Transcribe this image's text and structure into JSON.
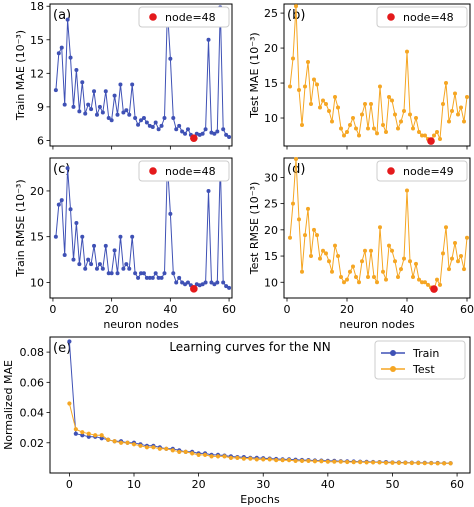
{
  "colors": {
    "train": "#3f51b5",
    "test": "#f5a623",
    "highlight": "#e41a1c"
  },
  "chart_data": [
    {
      "id": "a",
      "panel_label": "(a)",
      "type": "line",
      "ylabel": "Train MAE (10⁻³)",
      "xlabel": "",
      "xlim": [
        -1,
        61
      ],
      "ylim": [
        5.5,
        18.2
      ],
      "xticks": [
        0,
        20,
        40,
        60
      ],
      "xtick_labels": [
        "",
        "",
        "",
        ""
      ],
      "yticks": [
        6,
        9,
        12,
        15,
        18
      ],
      "ytick_labels": [
        "6",
        "9",
        "12",
        "15",
        "18"
      ],
      "legend": {
        "label": "node=48",
        "placement": "top-right"
      },
      "series_color": "train",
      "highlight": {
        "x": 48,
        "y": 6.2
      },
      "x": [
        1,
        2,
        3,
        4,
        5,
        6,
        7,
        8,
        9,
        10,
        11,
        12,
        13,
        14,
        15,
        16,
        17,
        18,
        19,
        20,
        21,
        22,
        23,
        24,
        25,
        26,
        27,
        28,
        29,
        30,
        31,
        32,
        33,
        34,
        35,
        36,
        37,
        38,
        39,
        40,
        41,
        42,
        43,
        44,
        45,
        46,
        47,
        48,
        49,
        50,
        51,
        52,
        53,
        54,
        55,
        56,
        57,
        58,
        59,
        60
      ],
      "y": [
        10.5,
        13.8,
        14.3,
        9.2,
        16.8,
        13.4,
        9.0,
        12.3,
        8.6,
        11.2,
        8.4,
        9.2,
        8.8,
        10.4,
        8.3,
        9.0,
        8.5,
        10.4,
        8.0,
        7.8,
        10.0,
        8.3,
        11.0,
        8.5,
        8.7,
        8.3,
        11.0,
        8.0,
        7.4,
        7.8,
        8.0,
        7.6,
        7.3,
        7.2,
        7.6,
        7.0,
        7.3,
        8.0,
        17.7,
        13.3,
        8.0,
        7.0,
        7.3,
        6.8,
        6.6,
        7.0,
        6.5,
        6.2,
        6.6,
        6.5,
        6.6,
        7.0,
        15.0,
        6.7,
        6.6,
        6.8,
        17.9,
        7.0,
        6.5,
        6.3
      ]
    },
    {
      "id": "b",
      "panel_label": "(b)",
      "type": "line",
      "ylabel": "Test MAE (10⁻³)",
      "xlabel": "",
      "xlim": [
        -1,
        61
      ],
      "ylim": [
        6.0,
        26.3
      ],
      "xticks": [
        0,
        20,
        40,
        60
      ],
      "xtick_labels": [
        "",
        "",
        "",
        ""
      ],
      "yticks": [
        10,
        15,
        20,
        25
      ],
      "ytick_labels": [
        "10",
        "15",
        "20",
        "25"
      ],
      "legend": {
        "label": "node=48",
        "placement": "top-right"
      },
      "series_color": "test",
      "highlight": {
        "x": 48,
        "y": 6.7
      },
      "x": [
        1,
        2,
        3,
        4,
        5,
        6,
        7,
        8,
        9,
        10,
        11,
        12,
        13,
        14,
        15,
        16,
        17,
        18,
        19,
        20,
        21,
        22,
        23,
        24,
        25,
        26,
        27,
        28,
        29,
        30,
        31,
        32,
        33,
        34,
        35,
        36,
        37,
        38,
        39,
        40,
        41,
        42,
        43,
        44,
        45,
        46,
        47,
        48,
        49,
        50,
        51,
        52,
        53,
        54,
        55,
        56,
        57,
        58,
        59,
        60
      ],
      "y": [
        14.5,
        18.5,
        26.0,
        14.0,
        9.0,
        14.5,
        18.0,
        12.0,
        15.5,
        14.8,
        11.5,
        12.5,
        12.0,
        11.0,
        9.5,
        13.0,
        11.5,
        8.5,
        7.5,
        8.0,
        9.0,
        10.0,
        8.5,
        7.5,
        10.5,
        12.0,
        8.5,
        12.0,
        8.5,
        7.8,
        14.5,
        9.0,
        8.0,
        13.0,
        12.5,
        10.5,
        8.5,
        9.5,
        11.0,
        19.5,
        10.5,
        8.5,
        10.0,
        8.0,
        7.5,
        7.5,
        7.0,
        6.7,
        7.5,
        8.0,
        7.0,
        12.0,
        15.0,
        9.5,
        11.0,
        13.5,
        10.5,
        11.5,
        9.5,
        13.0
      ]
    },
    {
      "id": "c",
      "panel_label": "(c)",
      "type": "line",
      "ylabel": "Train RMSE (10⁻³)",
      "xlabel": "neuron nodes",
      "xlim": [
        -1,
        61
      ],
      "ylim": [
        8.3,
        23.6
      ],
      "xticks": [
        0,
        20,
        40,
        60
      ],
      "xtick_labels": [
        "0",
        "20",
        "40",
        "60"
      ],
      "yticks": [
        10,
        15,
        20
      ],
      "ytick_labels": [
        "10",
        "15",
        "20"
      ],
      "legend": {
        "label": "node=48",
        "placement": "top-right"
      },
      "series_color": "train",
      "highlight": {
        "x": 48,
        "y": 9.3
      },
      "x": [
        1,
        2,
        3,
        4,
        5,
        6,
        7,
        8,
        9,
        10,
        11,
        12,
        13,
        14,
        15,
        16,
        17,
        18,
        19,
        20,
        21,
        22,
        23,
        24,
        25,
        26,
        27,
        28,
        29,
        30,
        31,
        32,
        33,
        34,
        35,
        36,
        37,
        38,
        39,
        40,
        41,
        42,
        43,
        44,
        45,
        46,
        47,
        48,
        49,
        50,
        51,
        52,
        53,
        54,
        55,
        56,
        57,
        58,
        59,
        60
      ],
      "y": [
        15.0,
        18.5,
        19.0,
        13.0,
        22.5,
        18.0,
        12.5,
        16.5,
        12.0,
        15.0,
        11.5,
        12.5,
        12.0,
        14.0,
        11.5,
        12.0,
        11.5,
        14.0,
        11.0,
        11.0,
        13.5,
        11.0,
        15.0,
        11.5,
        12.0,
        11.5,
        15.0,
        11.0,
        10.5,
        11.0,
        11.0,
        10.5,
        10.5,
        10.5,
        11.0,
        10.5,
        10.5,
        11.0,
        23.0,
        17.5,
        11.0,
        10.0,
        10.5,
        10.0,
        9.8,
        10.0,
        9.7,
        9.3,
        9.8,
        9.7,
        9.8,
        10.0,
        20.0,
        10.0,
        9.8,
        10.0,
        23.0,
        10.0,
        9.6,
        9.4
      ]
    },
    {
      "id": "d",
      "panel_label": "(d)",
      "type": "line",
      "ylabel": "Test RMSE (10⁻³)",
      "xlabel": "neuron nodes",
      "xlim": [
        -1,
        61
      ],
      "ylim": [
        7.0,
        33.7
      ],
      "xticks": [
        0,
        20,
        40,
        60
      ],
      "xtick_labels": [
        "0",
        "20",
        "40",
        "60"
      ],
      "yticks": [
        10,
        15,
        20,
        25,
        30
      ],
      "ytick_labels": [
        "10",
        "15",
        "20",
        "25",
        "30"
      ],
      "legend": {
        "label": "node=49",
        "placement": "top-right"
      },
      "series_color": "test",
      "highlight": {
        "x": 49,
        "y": 8.7
      },
      "x": [
        1,
        2,
        3,
        4,
        5,
        6,
        7,
        8,
        9,
        10,
        11,
        12,
        13,
        14,
        15,
        16,
        17,
        18,
        19,
        20,
        21,
        22,
        23,
        24,
        25,
        26,
        27,
        28,
        29,
        30,
        31,
        32,
        33,
        34,
        35,
        36,
        37,
        38,
        39,
        40,
        41,
        42,
        43,
        44,
        45,
        46,
        47,
        48,
        49,
        50,
        51,
        52,
        53,
        54,
        55,
        56,
        57,
        58,
        59,
        60
      ],
      "y": [
        18.5,
        25.0,
        33.5,
        22.0,
        12.0,
        19.0,
        24.0,
        15.0,
        20.0,
        19.0,
        14.5,
        16.0,
        15.5,
        14.0,
        12.0,
        17.0,
        15.0,
        11.0,
        10.0,
        10.5,
        12.0,
        13.0,
        11.0,
        10.0,
        14.0,
        16.0,
        11.0,
        16.0,
        11.0,
        10.0,
        20.5,
        12.0,
        10.5,
        17.0,
        16.0,
        14.0,
        11.0,
        12.5,
        14.5,
        27.5,
        14.0,
        11.0,
        13.5,
        10.5,
        10.0,
        10.0,
        9.5,
        9.0,
        8.7,
        10.5,
        9.5,
        15.5,
        20.5,
        12.5,
        14.5,
        17.5,
        14.0,
        15.0,
        12.5,
        18.5
      ]
    },
    {
      "id": "e",
      "panel_label": "(e)",
      "type": "line",
      "title": "Learning curves for the NN",
      "ylabel": "Normalized MAE",
      "xlabel": "Epochs",
      "xlim": [
        -3,
        62
      ],
      "ylim": [
        0.0,
        0.09
      ],
      "xticks": [
        0,
        10,
        20,
        30,
        40,
        50,
        60
      ],
      "xtick_labels": [
        "0",
        "10",
        "20",
        "30",
        "40",
        "50",
        "60"
      ],
      "yticks": [
        0.02,
        0.04,
        0.06,
        0.08
      ],
      "ytick_labels": [
        "0.02",
        "0.04",
        "0.06",
        "0.08"
      ],
      "legend": {
        "placement": "top-right"
      },
      "x": [
        0,
        1,
        2,
        3,
        4,
        5,
        6,
        7,
        8,
        9,
        10,
        11,
        12,
        13,
        14,
        15,
        16,
        17,
        18,
        19,
        20,
        21,
        22,
        23,
        24,
        25,
        26,
        27,
        28,
        29,
        30,
        31,
        32,
        33,
        34,
        35,
        36,
        37,
        38,
        39,
        40,
        41,
        42,
        43,
        44,
        45,
        46,
        47,
        48,
        49,
        50,
        51,
        52,
        53,
        54,
        55,
        56,
        57,
        58,
        59
      ],
      "series": [
        {
          "name": "Train",
          "color_key": "train",
          "values": [
            0.087,
            0.026,
            0.025,
            0.024,
            0.024,
            0.023,
            0.022,
            0.021,
            0.021,
            0.02,
            0.02,
            0.019,
            0.018,
            0.018,
            0.017,
            0.016,
            0.016,
            0.015,
            0.014,
            0.014,
            0.013,
            0.013,
            0.012,
            0.012,
            0.0115,
            0.011,
            0.0105,
            0.0105,
            0.01,
            0.01,
            0.0098,
            0.0095,
            0.0093,
            0.009,
            0.009,
            0.0088,
            0.0086,
            0.0085,
            0.0083,
            0.0082,
            0.008,
            0.008,
            0.0078,
            0.0077,
            0.0076,
            0.0075,
            0.0074,
            0.0073,
            0.0072,
            0.0072,
            0.007,
            0.007,
            0.0069,
            0.0068,
            0.0068,
            0.0067,
            0.0066,
            0.0066,
            0.0065,
            0.0065
          ]
        },
        {
          "name": "Test",
          "color_key": "test",
          "values": [
            0.046,
            0.029,
            0.027,
            0.026,
            0.025,
            0.025,
            0.022,
            0.021,
            0.02,
            0.02,
            0.019,
            0.018,
            0.017,
            0.017,
            0.016,
            0.016,
            0.015,
            0.014,
            0.014,
            0.013,
            0.012,
            0.012,
            0.011,
            0.011,
            0.011,
            0.01,
            0.01,
            0.0095,
            0.0095,
            0.009,
            0.009,
            0.009,
            0.0085,
            0.0085,
            0.0085,
            0.008,
            0.008,
            0.008,
            0.0078,
            0.0078,
            0.0075,
            0.0075,
            0.0075,
            0.0073,
            0.0072,
            0.0072,
            0.007,
            0.007,
            0.007,
            0.0068,
            0.0068,
            0.0067,
            0.0067,
            0.0066,
            0.0066,
            0.0065,
            0.0065,
            0.0064,
            0.0064,
            0.0064
          ]
        }
      ]
    }
  ]
}
